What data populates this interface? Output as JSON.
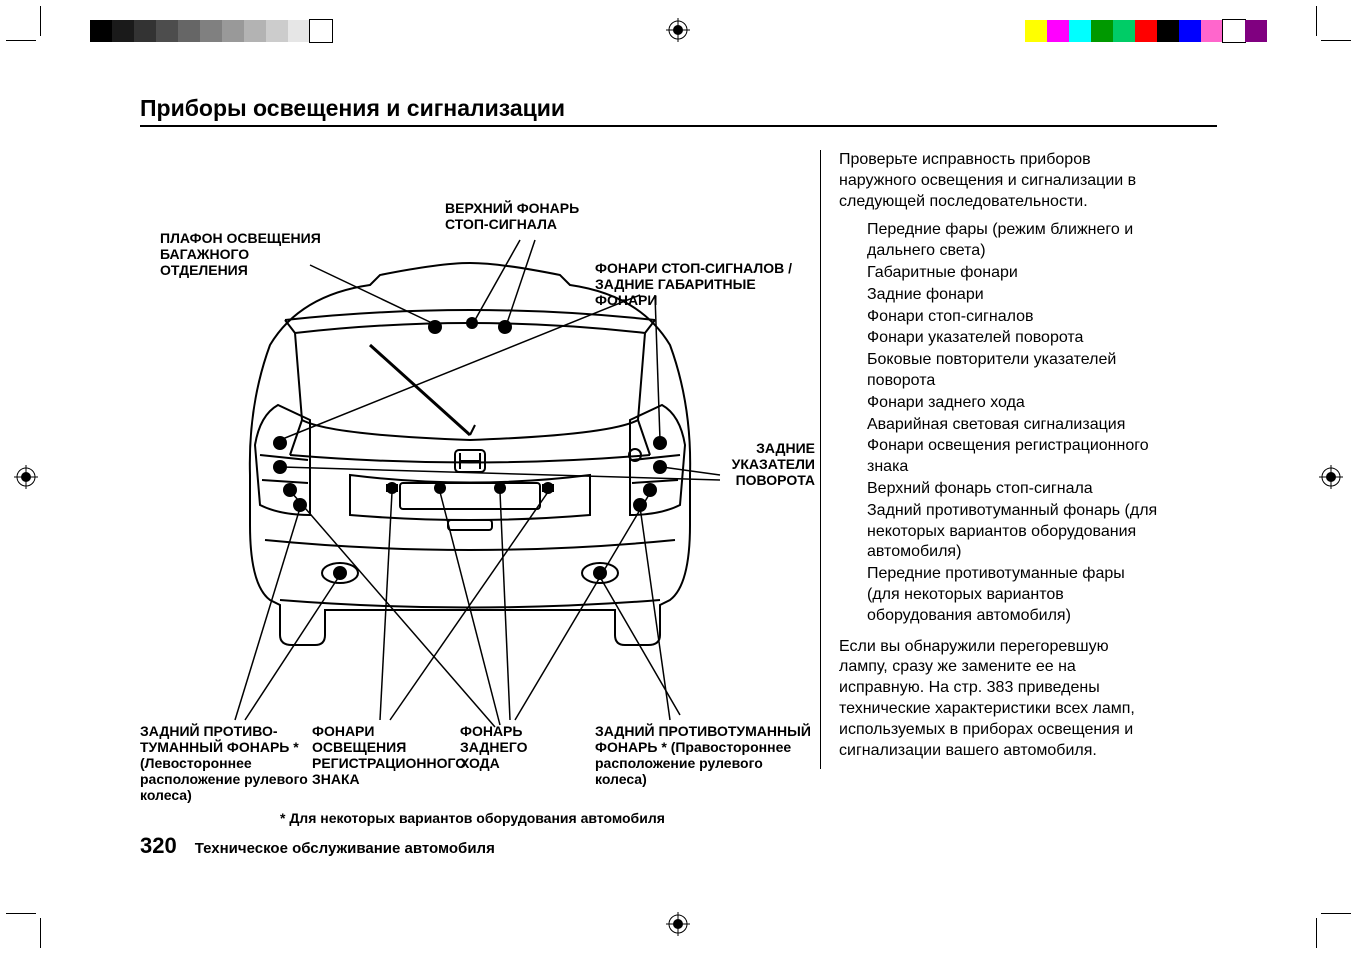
{
  "page": {
    "title": "Приборы освещения и сигнализации",
    "number": "320",
    "footer": "Техническое обслуживание автомобиля"
  },
  "labels": {
    "cargo_light": "ПЛАФОН ОСВЕЩЕНИЯ\nБАГАЖНОГО ОТДЕЛЕНИЯ",
    "high_stop": "ВЕРХНИЙ ФОНАРЬ\nСТОП-СИГНАЛА",
    "stop_tail": "ФОНАРИ СТОП-СИГНАЛОВ /\nЗАДНИЕ ГАБАРИТНЫЕ ФОНАРИ",
    "turn_signals": "ЗАДНИЕ\nУКАЗАТЕЛИ\nПОВОРОТА",
    "fog_right": "ЗАДНИЙ ПРОТИВОТУМАННЫЙ\nФОНАРЬ * (Правостороннее\nрасположение рулевого колеса)",
    "reverse": "ФОНАРЬ ЗАДНЕГО\nХОДА",
    "plate": "ФОНАРИ ОСВЕЩЕНИЯ\nРЕГИСТРАЦИОННОГО\nЗНАКА",
    "fog_left": "ЗАДНИЙ ПРОТИВО-\nТУМАННЫЙ ФОНАРЬ *\n(Левостороннее\nрасположение рулевого\nколеса)",
    "footnote": "* Для некоторых вариантов оборудования автомобиля"
  },
  "text": {
    "intro": "Проверьте исправность приборов наружного освещения и сигнализации в следующей последовательности.",
    "items": [
      "Передние фары (режим ближнего и дальнего света)",
      "Габаритные фонари",
      "Задние фонари",
      "Фонари стоп-сигналов",
      "Фонари указателей поворота",
      "Боковые повторители указателей поворота",
      "Фонари заднего хода",
      "Аварийная световая сигнализация",
      "Фонари освещения регистрационного знака",
      "Верхний фонарь стоп-сигнала",
      "Задний противотуманный фонарь (для некоторых вариантов оборудования автомобиля)",
      "Передние противотуманные фары (для некоторых вариантов оборудования автомобиля)"
    ],
    "outro": "Если вы обнаружили перегоревшую лампу, сразу же замените ее на исправную. На стр. 383 приведены технические характеристики всех ламп, используемых в приборах освещения и сигнализации вашего автомобиля."
  },
  "colorbars": {
    "left": [
      "#000000",
      "#1a1a1a",
      "#333333",
      "#4d4d4d",
      "#666666",
      "#808080",
      "#999999",
      "#b3b3b3",
      "#cccccc",
      "#e6e6e6",
      "#ffffff"
    ],
    "right": [
      "#ffff00",
      "#ff00ff",
      "#00ffff",
      "#009900",
      "#00cc66",
      "#ff0000",
      "#000000",
      "#0000ff",
      "#ff66cc",
      "#ffffff",
      "#800080"
    ]
  }
}
